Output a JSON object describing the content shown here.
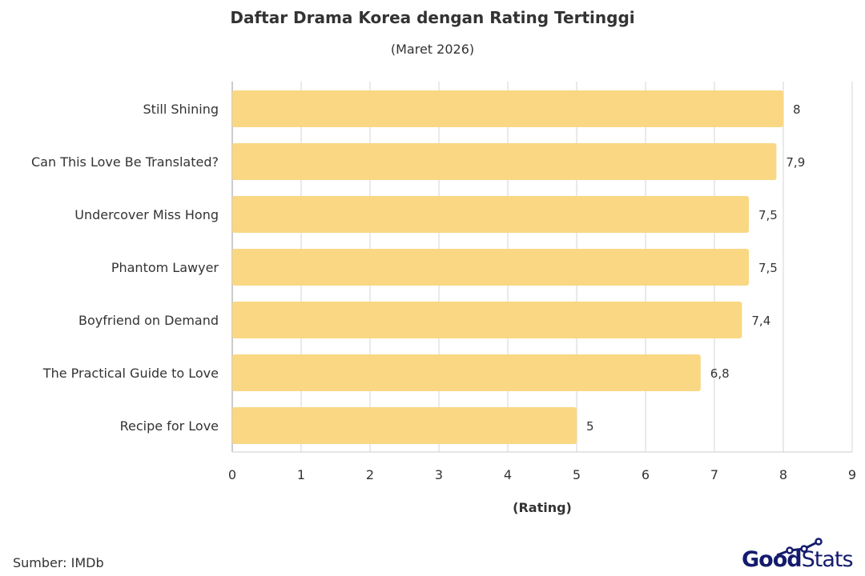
{
  "chart_data": {
    "type": "bar",
    "orientation": "horizontal",
    "title": "Daftar Drama Korea dengan Rating Tertinggi",
    "subtitle": "(Maret 2026)",
    "xlabel": "(Rating)",
    "ylabel": "",
    "xlim": [
      0,
      9
    ],
    "xticks": [
      "0",
      "1",
      "2",
      "3",
      "4",
      "5",
      "6",
      "7",
      "8",
      "9"
    ],
    "grid": true,
    "categories": [
      "Still Shining",
      "Can This Love Be Translated?",
      "Undercover Miss Hong",
      "Phantom Lawyer",
      "Boyfriend on Demand",
      "The Practical Guide to Love",
      "Recipe for Love"
    ],
    "values": [
      8,
      7.9,
      7.5,
      7.5,
      7.4,
      6.8,
      5
    ],
    "data_labels": [
      "8",
      "7,9",
      "7,5",
      "7,5",
      "7,4",
      "6,8",
      "5"
    ],
    "bar_color": "#f9d783"
  },
  "footer": {
    "source": "Sumber: IMDb",
    "logo_text_bold": "Good",
    "logo_text_light": "Stats",
    "logo_color": "#141b6e"
  }
}
